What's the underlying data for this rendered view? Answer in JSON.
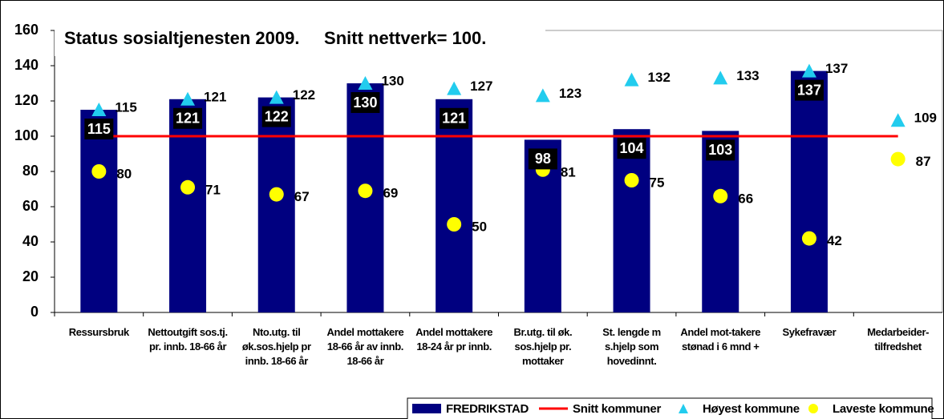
{
  "chart_data": {
    "type": "bar",
    "title": "Status sosialtjenesten 2009.     Snitt nettverk= 100.",
    "categories": [
      "Ressursbruk",
      "Nettoutgift sos.tj. pr. innb. 18-66 år",
      "Nto.utg. til øk.sos.hjelp pr innb. 18-66 år",
      "Andel mottakere 18-66 år av innb. 18-66 år",
      "Andel mottakere 18-24 år pr innb.",
      "Br.utg. til øk. sos.hjelp pr. mottaker",
      "St. lengde m s.hjelp som hovedinnt.",
      "Andel mot-takere stønad i 6 mnd +",
      "Sykefravær",
      "Medarbeider-tilfredshet"
    ],
    "series": [
      {
        "name": "FREDRIKSTAD",
        "type": "bar",
        "color": "#000080",
        "values": [
          115,
          121,
          122,
          130,
          121,
          98,
          104,
          103,
          137,
          null
        ]
      },
      {
        "name": "Snitt kommuner",
        "type": "line",
        "color": "#ff0000",
        "values": [
          100,
          100,
          100,
          100,
          100,
          100,
          100,
          100,
          100,
          100
        ]
      },
      {
        "name": "Høyest kommune",
        "type": "triangle",
        "color": "#22ccee",
        "values": [
          115,
          121,
          122,
          130,
          127,
          123,
          132,
          133,
          137,
          109
        ]
      },
      {
        "name": "Laveste kommune",
        "type": "circle",
        "color": "#ffff00",
        "values": [
          80,
          71,
          67,
          69,
          50,
          81,
          75,
          66,
          42,
          87
        ]
      }
    ],
    "ylim": [
      0,
      160
    ],
    "yticks": [
      0,
      20,
      40,
      60,
      80,
      100,
      120,
      140,
      160
    ],
    "grid": false,
    "legend": "bottom-right"
  }
}
